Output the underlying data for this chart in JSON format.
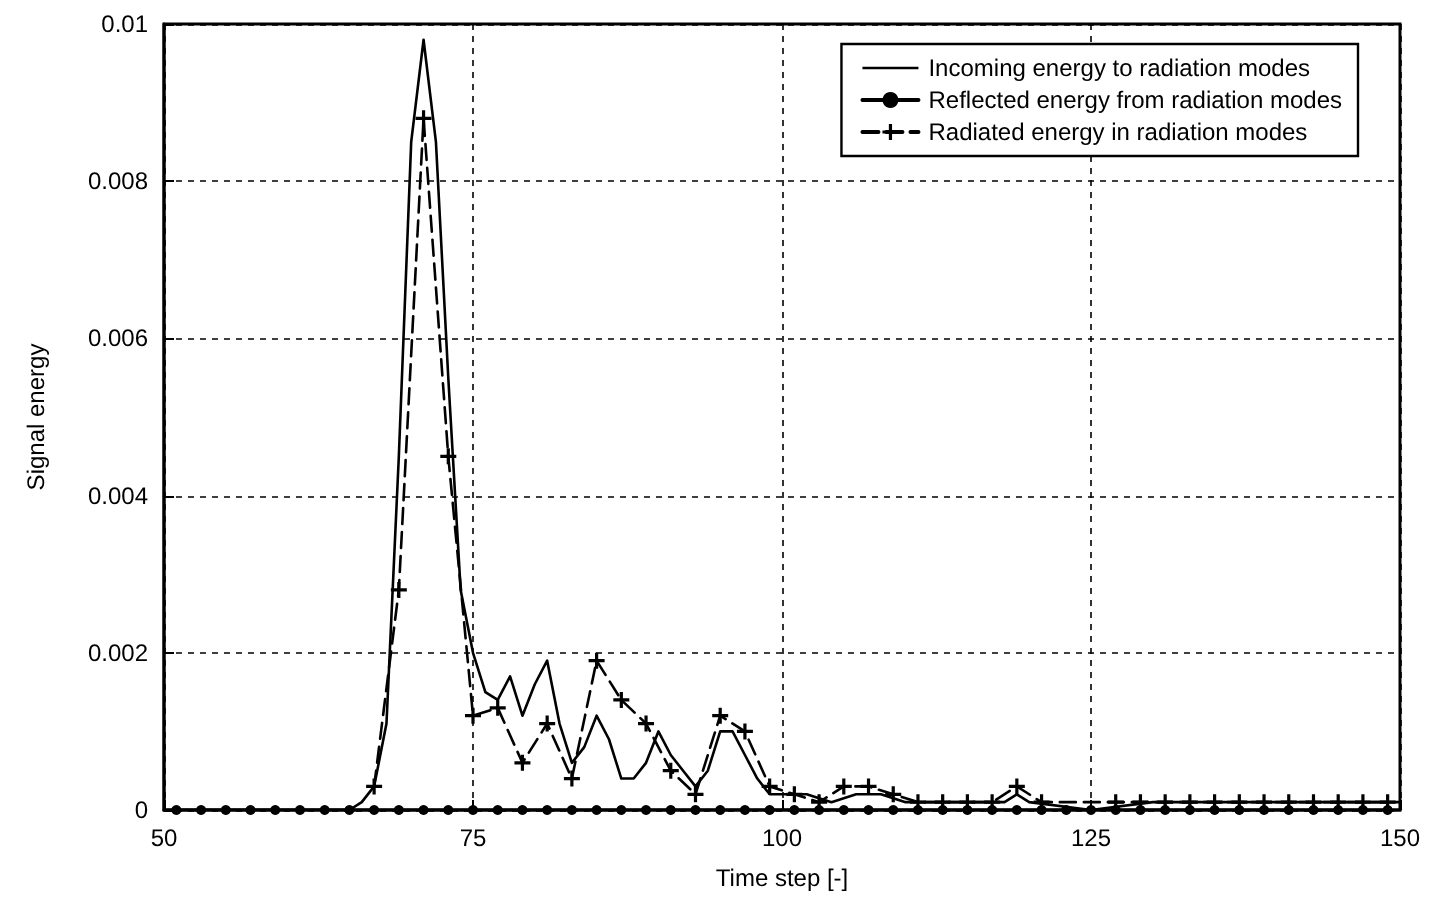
{
  "chart_data": {
    "type": "line",
    "xlabel": "Time step [-]",
    "ylabel": "Signal energy",
    "xlim": [
      50,
      150
    ],
    "ylim": [
      0,
      0.01
    ],
    "xticks": [
      50,
      75,
      100,
      125,
      150
    ],
    "yticks": [
      0,
      0.002,
      0.004,
      0.006,
      0.008,
      0.01
    ],
    "grid": true,
    "legend": "top right",
    "series": [
      {
        "name": "Incoming energy to radiation modes",
        "color": "#000000",
        "marker": "none",
        "line_style": "solid",
        "x": [
          50,
          55,
          60,
          64,
          65,
          66,
          67,
          68,
          69,
          70,
          71,
          72,
          73,
          74,
          75,
          76,
          77,
          78,
          79,
          80,
          81,
          82,
          83,
          84,
          85,
          86,
          87,
          88,
          89,
          90,
          91,
          92,
          93,
          94,
          95,
          96,
          97,
          98,
          99,
          100,
          102,
          104,
          106,
          108,
          110,
          112,
          114,
          116,
          118,
          119,
          120,
          125,
          130,
          135,
          140,
          145,
          150
        ],
        "values": [
          0,
          0,
          0,
          0,
          0,
          0.0001,
          0.0003,
          0.0011,
          0.0045,
          0.0085,
          0.0098,
          0.0085,
          0.0055,
          0.0028,
          0.002,
          0.0015,
          0.0014,
          0.0017,
          0.0012,
          0.0016,
          0.0019,
          0.0011,
          0.0006,
          0.0008,
          0.0012,
          0.0009,
          0.0004,
          0.0004,
          0.0006,
          0.001,
          0.0007,
          0.0005,
          0.0003,
          0.0005,
          0.001,
          0.001,
          0.0007,
          0.0004,
          0.0002,
          0.0002,
          0.0002,
          0.0001,
          0.0002,
          0.0002,
          0.0001,
          0.0001,
          0.0001,
          0.0001,
          0.0001,
          0.0002,
          0.0001,
          0,
          0.0001,
          0.0001,
          0.0001,
          0.0001,
          0.0001
        ]
      },
      {
        "name": "Reflected energy from radiation modes",
        "color": "#000000",
        "marker": "circle",
        "line_style": "solid",
        "x": [
          51,
          53,
          55,
          57,
          59,
          61,
          63,
          65,
          67,
          69,
          71,
          73,
          75,
          77,
          79,
          81,
          83,
          85,
          87,
          89,
          91,
          93,
          95,
          97,
          99,
          101,
          103,
          105,
          107,
          109,
          111,
          113,
          115,
          117,
          119,
          121,
          123,
          125,
          127,
          129,
          131,
          133,
          135,
          137,
          139,
          141,
          143,
          145,
          147,
          149
        ],
        "values": [
          0,
          0,
          0,
          0,
          0,
          0,
          0,
          0,
          0,
          0,
          0,
          0,
          0,
          0,
          0,
          0,
          0,
          0,
          0,
          0,
          0,
          0,
          0,
          0,
          0,
          0,
          0,
          0,
          0,
          0,
          0,
          0,
          0,
          0,
          0,
          0,
          0,
          0,
          0,
          0,
          0,
          0,
          0,
          0,
          0,
          0,
          0,
          0,
          0,
          0
        ]
      },
      {
        "name": "Radiated energy in radiation modes",
        "color": "#000000",
        "marker": "cross",
        "line_style": "dashed",
        "x": [
          67,
          69,
          71,
          73,
          75,
          77,
          79,
          81,
          83,
          85,
          87,
          89,
          91,
          93,
          95,
          97,
          99,
          101,
          103,
          105,
          107,
          109,
          111,
          113,
          115,
          117,
          119,
          121,
          127,
          129,
          131,
          133,
          135,
          137,
          139,
          141,
          143,
          145,
          147,
          149
        ],
        "values": [
          0.0003,
          0.0028,
          0.0088,
          0.0045,
          0.0012,
          0.0013,
          0.0006,
          0.0011,
          0.0004,
          0.0019,
          0.0014,
          0.0011,
          0.0005,
          0.0002,
          0.0012,
          0.001,
          0.0003,
          0.0002,
          0.0001,
          0.0003,
          0.0003,
          0.0002,
          0.0001,
          0.0001,
          0.0001,
          0.0001,
          0.0003,
          0.0001,
          0.0001,
          0.0001,
          0.0001,
          0.0001,
          0.0001,
          0.0001,
          0.0001,
          0.0001,
          0.0001,
          0.0001,
          0.0001,
          0.0001
        ]
      }
    ]
  }
}
